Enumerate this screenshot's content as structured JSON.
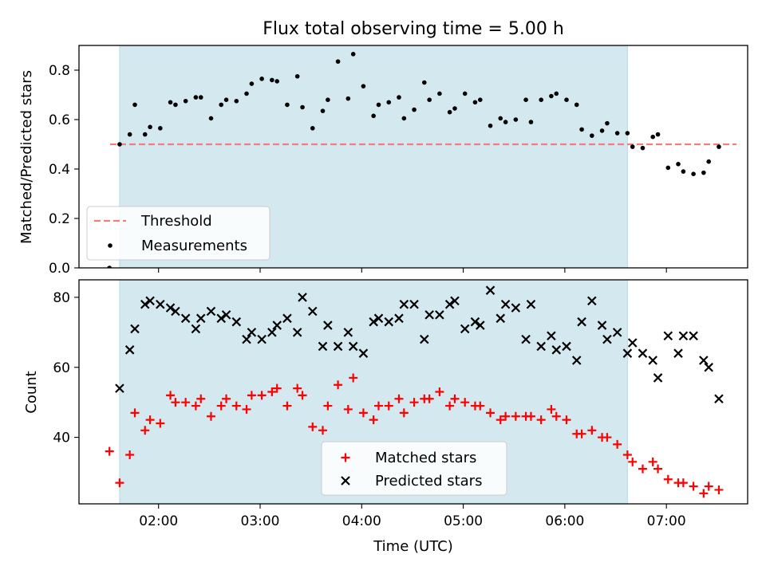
{
  "chart_data": [
    {
      "type": "scatter",
      "title": "Flux total observing time = 5.00 h",
      "xlabel": "",
      "ylabel": "Matched/Predicted stars",
      "ylim": [
        0.0,
        0.9
      ],
      "yticks": [
        "0.0",
        "0.2",
        "0.4",
        "0.6",
        "0.8"
      ],
      "xlim": [
        "01:13",
        "07:48"
      ],
      "x_tick_labels_shown": false,
      "highlight_band": {
        "from": "01:37",
        "to": "06:37",
        "color": "#d3e9ef"
      },
      "threshold": {
        "name": "Threshold",
        "value": 0.5,
        "color": "#f08080",
        "style": "dashed"
      },
      "legend": {
        "position": "lower-left",
        "entries": [
          "Threshold",
          "Measurements"
        ]
      },
      "series": [
        {
          "name": "Measurements",
          "marker": "dot",
          "color": "#000000",
          "points": [
            [
              "01:31",
              0.0
            ],
            [
              "01:37",
              0.5
            ],
            [
              "01:43",
              0.54
            ],
            [
              "01:46",
              0.66
            ],
            [
              "01:52",
              0.54
            ],
            [
              "01:55",
              0.57
            ],
            [
              "02:01",
              0.565
            ],
            [
              "02:07",
              0.67
            ],
            [
              "02:10",
              0.66
            ],
            [
              "02:16",
              0.675
            ],
            [
              "02:22",
              0.69
            ],
            [
              "02:25",
              0.69
            ],
            [
              "02:31",
              0.605
            ],
            [
              "02:37",
              0.66
            ],
            [
              "02:40",
              0.68
            ],
            [
              "02:46",
              0.675
            ],
            [
              "02:52",
              0.705
            ],
            [
              "02:55",
              0.745
            ],
            [
              "03:01",
              0.765
            ],
            [
              "03:07",
              0.76
            ],
            [
              "03:10",
              0.755
            ],
            [
              "03:16",
              0.66
            ],
            [
              "03:22",
              0.775
            ],
            [
              "03:25",
              0.65
            ],
            [
              "03:31",
              0.565
            ],
            [
              "03:37",
              0.635
            ],
            [
              "03:40",
              0.68
            ],
            [
              "03:46",
              0.835
            ],
            [
              "03:52",
              0.685
            ],
            [
              "03:55",
              0.865
            ],
            [
              "04:01",
              0.735
            ],
            [
              "04:07",
              0.615
            ],
            [
              "04:10",
              0.66
            ],
            [
              "04:16",
              0.67
            ],
            [
              "04:22",
              0.69
            ],
            [
              "04:25",
              0.605
            ],
            [
              "04:31",
              0.64
            ],
            [
              "04:37",
              0.75
            ],
            [
              "04:40",
              0.68
            ],
            [
              "04:46",
              0.705
            ],
            [
              "04:52",
              0.63
            ],
            [
              "04:55",
              0.645
            ],
            [
              "05:01",
              0.705
            ],
            [
              "05:07",
              0.67
            ],
            [
              "05:10",
              0.68
            ],
            [
              "05:16",
              0.575
            ],
            [
              "05:22",
              0.605
            ],
            [
              "05:25",
              0.59
            ],
            [
              "05:31",
              0.6
            ],
            [
              "05:37",
              0.68
            ],
            [
              "05:40",
              0.59
            ],
            [
              "05:46",
              0.68
            ],
            [
              "05:52",
              0.695
            ],
            [
              "05:55",
              0.705
            ],
            [
              "06:01",
              0.68
            ],
            [
              "06:07",
              0.66
            ],
            [
              "06:10",
              0.56
            ],
            [
              "06:16",
              0.535
            ],
            [
              "06:22",
              0.555
            ],
            [
              "06:25",
              0.585
            ],
            [
              "06:31",
              0.545
            ],
            [
              "06:37",
              0.545
            ],
            [
              "06:40",
              0.49
            ],
            [
              "06:46",
              0.485
            ],
            [
              "06:52",
              0.53
            ],
            [
              "06:55",
              0.54
            ],
            [
              "07:01",
              0.405
            ],
            [
              "07:07",
              0.42
            ],
            [
              "07:10",
              0.39
            ],
            [
              "07:16",
              0.38
            ],
            [
              "07:22",
              0.385
            ],
            [
              "07:25",
              0.43
            ],
            [
              "07:31",
              0.49
            ]
          ]
        }
      ]
    },
    {
      "type": "scatter",
      "title": "",
      "xlabel": "Time (UTC)",
      "ylabel": "Count",
      "ylim": [
        21,
        85
      ],
      "yticks": [
        "40",
        "60",
        "80"
      ],
      "xlim": [
        "01:13",
        "07:48"
      ],
      "xticks": [
        "02:00",
        "03:00",
        "04:00",
        "05:00",
        "06:00",
        "07:00"
      ],
      "highlight_band": {
        "from": "01:37",
        "to": "06:37",
        "color": "#d3e9ef"
      },
      "legend": {
        "position": "lower-center",
        "entries": [
          "Matched stars",
          "Predicted stars"
        ]
      },
      "series": [
        {
          "name": "Matched stars",
          "marker": "plus",
          "color": "#ff0000",
          "points": [
            [
              "01:31",
              36
            ],
            [
              "01:37",
              27
            ],
            [
              "01:43",
              35
            ],
            [
              "01:46",
              47
            ],
            [
              "01:52",
              42
            ],
            [
              "01:55",
              45
            ],
            [
              "02:01",
              44
            ],
            [
              "02:07",
              52
            ],
            [
              "02:10",
              50
            ],
            [
              "02:16",
              50
            ],
            [
              "02:22",
              49
            ],
            [
              "02:25",
              51
            ],
            [
              "02:31",
              46
            ],
            [
              "02:37",
              49
            ],
            [
              "02:40",
              51
            ],
            [
              "02:46",
              49
            ],
            [
              "02:52",
              48
            ],
            [
              "02:55",
              52
            ],
            [
              "03:01",
              52
            ],
            [
              "03:07",
              53
            ],
            [
              "03:10",
              54
            ],
            [
              "03:16",
              49
            ],
            [
              "03:22",
              54
            ],
            [
              "03:25",
              52
            ],
            [
              "03:31",
              43
            ],
            [
              "03:37",
              42
            ],
            [
              "03:40",
              49
            ],
            [
              "03:46",
              55
            ],
            [
              "03:52",
              48
            ],
            [
              "03:55",
              57
            ],
            [
              "04:01",
              47
            ],
            [
              "04:07",
              45
            ],
            [
              "04:10",
              49
            ],
            [
              "04:16",
              49
            ],
            [
              "04:22",
              51
            ],
            [
              "04:25",
              47
            ],
            [
              "04:31",
              50
            ],
            [
              "04:37",
              51
            ],
            [
              "04:40",
              51
            ],
            [
              "04:46",
              53
            ],
            [
              "04:52",
              49
            ],
            [
              "04:55",
              51
            ],
            [
              "05:01",
              50
            ],
            [
              "05:07",
              49
            ],
            [
              "05:10",
              49
            ],
            [
              "05:16",
              47
            ],
            [
              "05:22",
              45
            ],
            [
              "05:25",
              46
            ],
            [
              "05:31",
              46
            ],
            [
              "05:37",
              46
            ],
            [
              "05:40",
              46
            ],
            [
              "05:46",
              45
            ],
            [
              "05:52",
              48
            ],
            [
              "05:55",
              46
            ],
            [
              "06:01",
              45
            ],
            [
              "06:07",
              41
            ],
            [
              "06:10",
              41
            ],
            [
              "06:16",
              42
            ],
            [
              "06:22",
              40
            ],
            [
              "06:25",
              40
            ],
            [
              "06:31",
              38
            ],
            [
              "06:37",
              35
            ],
            [
              "06:40",
              33
            ],
            [
              "06:46",
              31
            ],
            [
              "06:52",
              33
            ],
            [
              "06:55",
              31
            ],
            [
              "07:01",
              28
            ],
            [
              "07:07",
              27
            ],
            [
              "07:10",
              27
            ],
            [
              "07:16",
              26
            ],
            [
              "07:22",
              24
            ],
            [
              "07:25",
              26
            ],
            [
              "07:31",
              25
            ]
          ]
        },
        {
          "name": "Predicted stars",
          "marker": "x",
          "color": "#000000",
          "points": [
            [
              "01:37",
              54
            ],
            [
              "01:43",
              65
            ],
            [
              "01:46",
              71
            ],
            [
              "01:52",
              78
            ],
            [
              "01:55",
              79
            ],
            [
              "02:01",
              78
            ],
            [
              "02:07",
              77
            ],
            [
              "02:10",
              76
            ],
            [
              "02:16",
              74
            ],
            [
              "02:22",
              71
            ],
            [
              "02:25",
              74
            ],
            [
              "02:31",
              76
            ],
            [
              "02:37",
              74
            ],
            [
              "02:40",
              75
            ],
            [
              "02:46",
              73
            ],
            [
              "02:52",
              68
            ],
            [
              "02:55",
              70
            ],
            [
              "03:01",
              68
            ],
            [
              "03:07",
              70
            ],
            [
              "03:10",
              72
            ],
            [
              "03:16",
              74
            ],
            [
              "03:22",
              70
            ],
            [
              "03:25",
              80
            ],
            [
              "03:31",
              76
            ],
            [
              "03:37",
              66
            ],
            [
              "03:40",
              72
            ],
            [
              "03:46",
              66
            ],
            [
              "03:52",
              70
            ],
            [
              "03:55",
              66
            ],
            [
              "04:01",
              64
            ],
            [
              "04:07",
              73
            ],
            [
              "04:10",
              74
            ],
            [
              "04:16",
              73
            ],
            [
              "04:22",
              74
            ],
            [
              "04:25",
              78
            ],
            [
              "04:31",
              78
            ],
            [
              "04:37",
              68
            ],
            [
              "04:40",
              75
            ],
            [
              "04:46",
              75
            ],
            [
              "04:52",
              78
            ],
            [
              "04:55",
              79
            ],
            [
              "05:01",
              71
            ],
            [
              "05:07",
              73
            ],
            [
              "05:10",
              72
            ],
            [
              "05:16",
              82
            ],
            [
              "05:22",
              74
            ],
            [
              "05:25",
              78
            ],
            [
              "05:31",
              77
            ],
            [
              "05:37",
              68
            ],
            [
              "05:40",
              78
            ],
            [
              "05:46",
              66
            ],
            [
              "05:52",
              69
            ],
            [
              "05:55",
              65
            ],
            [
              "06:01",
              66
            ],
            [
              "06:07",
              62
            ],
            [
              "06:10",
              73
            ],
            [
              "06:16",
              79
            ],
            [
              "06:22",
              72
            ],
            [
              "06:25",
              68
            ],
            [
              "06:31",
              70
            ],
            [
              "06:37",
              64
            ],
            [
              "06:40",
              67
            ],
            [
              "06:46",
              64
            ],
            [
              "06:52",
              62
            ],
            [
              "06:55",
              57
            ],
            [
              "07:01",
              69
            ],
            [
              "07:07",
              64
            ],
            [
              "07:10",
              69
            ],
            [
              "07:16",
              69
            ],
            [
              "07:22",
              62
            ],
            [
              "07:25",
              60
            ],
            [
              "07:31",
              51
            ]
          ]
        }
      ]
    }
  ]
}
